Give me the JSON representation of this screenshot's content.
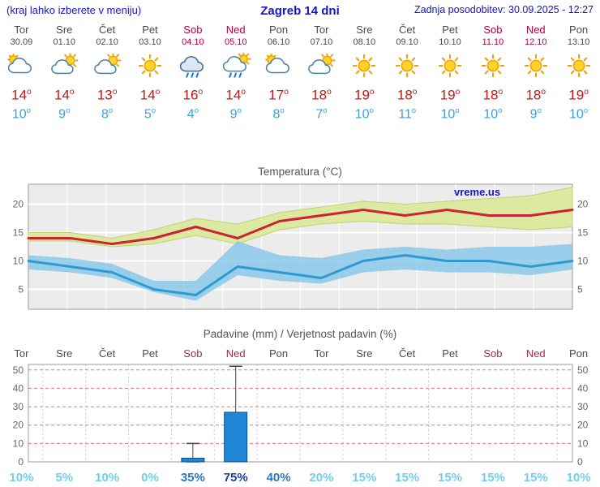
{
  "colors": {
    "header_blue": "#1414c8",
    "weekend_red": "#b40040",
    "tmax_red": "#cc1414",
    "tmin_blue": "#3aa0dd",
    "max_line": "#cc2233",
    "max_band": "#dce9a0",
    "min_line": "#2f9ad2",
    "min_band": "#7cc4e8",
    "bar_blue": "#1f86d6",
    "pop_low": "#6fd0ee",
    "pop_mid": "#2c77bb",
    "pop_high": "#1c3fa8"
  },
  "header": {
    "left_note": "(kraj lahko izberete v meniju)",
    "title": "Zagreb 14 dni",
    "updated": "Zadnja posodobitev: 30.09.2025 - 12:27"
  },
  "days": [
    {
      "name": "Tor",
      "date": "30.09",
      "weekend": false,
      "icon": "cloudy",
      "tmax": 14,
      "tmin": 10,
      "pop": "10%",
      "pop_level": "low"
    },
    {
      "name": "Sre",
      "date": "01.10",
      "weekend": false,
      "icon": "partly",
      "tmax": 14,
      "tmin": 9,
      "pop": "5%",
      "pop_level": "low"
    },
    {
      "name": "Čet",
      "date": "02.10",
      "weekend": false,
      "icon": "partly",
      "tmax": 13,
      "tmin": 8,
      "pop": "10%",
      "pop_level": "low"
    },
    {
      "name": "Pet",
      "date": "03.10",
      "weekend": false,
      "icon": "sun",
      "tmax": 14,
      "tmin": 5,
      "pop": "0%",
      "pop_level": "low"
    },
    {
      "name": "Sob",
      "date": "04.10",
      "weekend": true,
      "icon": "rain",
      "tmax": 16,
      "tmin": 4,
      "pop": "35%",
      "pop_level": "mid"
    },
    {
      "name": "Ned",
      "date": "05.10",
      "weekend": true,
      "icon": "sunrain",
      "tmax": 14,
      "tmin": 9,
      "pop": "75%",
      "pop_level": "high"
    },
    {
      "name": "Pon",
      "date": "06.10",
      "weekend": false,
      "icon": "cloudy",
      "tmax": 17,
      "tmin": 8,
      "pop": "40%",
      "pop_level": "mid"
    },
    {
      "name": "Tor",
      "date": "07.10",
      "weekend": false,
      "icon": "partly",
      "tmax": 18,
      "tmin": 7,
      "pop": "20%",
      "pop_level": "low"
    },
    {
      "name": "Sre",
      "date": "08.10",
      "weekend": false,
      "icon": "sun",
      "tmax": 19,
      "tmin": 10,
      "pop": "15%",
      "pop_level": "low"
    },
    {
      "name": "Čet",
      "date": "09.10",
      "weekend": false,
      "icon": "sun",
      "tmax": 18,
      "tmin": 11,
      "pop": "15%",
      "pop_level": "low"
    },
    {
      "name": "Pet",
      "date": "10.10",
      "weekend": false,
      "icon": "sun",
      "tmax": 19,
      "tmin": 10,
      "pop": "15%",
      "pop_level": "low"
    },
    {
      "name": "Sob",
      "date": "11.10",
      "weekend": true,
      "icon": "sun",
      "tmax": 18,
      "tmin": 10,
      "pop": "15%",
      "pop_level": "low"
    },
    {
      "name": "Ned",
      "date": "12.10",
      "weekend": true,
      "icon": "sun",
      "tmax": 18,
      "tmin": 9,
      "pop": "15%",
      "pop_level": "low"
    },
    {
      "name": "Pon",
      "date": "13.10",
      "weekend": false,
      "icon": "sun",
      "tmax": 19,
      "tmin": 10,
      "pop": "10%",
      "pop_level": "low"
    }
  ],
  "temp_chart": {
    "title": "Temperatura (°C)",
    "watermark": "vreme.us"
  },
  "precip_chart": {
    "title": "Padavine (mm) / Verjetnost padavin (%)"
  },
  "chart_data": [
    {
      "type": "line",
      "title": "Temperatura (°C)",
      "x": [
        "Tor 30.09",
        "Sre 01.10",
        "Čet 02.10",
        "Pet 03.10",
        "Sob 04.10",
        "Ned 05.10",
        "Pon 06.10",
        "Tor 07.10",
        "Sre 08.10",
        "Čet 09.10",
        "Pet 10.10",
        "Sob 11.10",
        "Ned 12.10",
        "Pon 13.10"
      ],
      "ylim": [
        1.5,
        23.5
      ],
      "yticks": [
        5,
        10,
        15,
        20
      ],
      "grid": true,
      "legend": "none",
      "series": [
        {
          "name": "tmax",
          "role": "line",
          "color": "#cc2233",
          "values": [
            14,
            14,
            13,
            14,
            16,
            14,
            17,
            18,
            19,
            18,
            19,
            18,
            18,
            19
          ]
        },
        {
          "name": "tmin",
          "role": "line",
          "color": "#2f9ad2",
          "values": [
            10,
            9,
            8,
            5,
            4,
            9,
            8,
            7,
            10,
            11,
            10,
            10,
            9,
            10
          ]
        },
        {
          "name": "tmax_range_high",
          "role": "band_edge",
          "values": [
            15,
            15,
            14,
            15.5,
            17.5,
            16.5,
            18.5,
            19.5,
            20.5,
            20,
            20.5,
            21,
            21.5,
            23
          ]
        },
        {
          "name": "tmax_range_low",
          "role": "band_edge",
          "values": [
            13.5,
            13.5,
            12.5,
            13,
            14.5,
            13,
            15.5,
            16.5,
            17,
            16.5,
            16.5,
            16,
            15.5,
            16
          ]
        },
        {
          "name": "tmin_range_high",
          "role": "band_edge",
          "values": [
            11,
            10.5,
            9.5,
            6.5,
            6.5,
            13.5,
            11,
            10.5,
            12,
            12.5,
            12,
            12.5,
            12.5,
            13
          ]
        },
        {
          "name": "tmin_range_low",
          "role": "band_edge",
          "values": [
            8.5,
            8,
            7,
            4.5,
            3,
            7.5,
            6.5,
            6,
            8,
            8.5,
            8,
            8,
            7.5,
            8.5
          ]
        }
      ]
    },
    {
      "type": "bar",
      "title": "Padavine (mm) / Verjetnost padavin (%)",
      "categories": [
        "Tor",
        "Sre",
        "Čet",
        "Pet",
        "Sob",
        "Ned",
        "Pon",
        "Tor",
        "Sre",
        "Čet",
        "Pet",
        "Sob",
        "Ned",
        "Pon"
      ],
      "values": [
        0,
        0,
        0,
        0,
        2,
        27,
        0,
        0,
        0,
        0,
        0,
        0,
        0,
        0
      ],
      "whisker_low": [
        null,
        null,
        null,
        null,
        0,
        5,
        null,
        null,
        null,
        null,
        null,
        null,
        null,
        null
      ],
      "whisker_high": [
        null,
        null,
        null,
        null,
        10,
        52,
        null,
        null,
        null,
        null,
        null,
        null,
        null,
        null
      ],
      "probabilities_pct": [
        10,
        5,
        10,
        0,
        35,
        75,
        40,
        20,
        15,
        15,
        15,
        15,
        15,
        10
      ],
      "ylim": [
        0,
        53
      ],
      "yticks": [
        0,
        10,
        20,
        30,
        40,
        50
      ],
      "grid": true,
      "legend": "none"
    }
  ]
}
